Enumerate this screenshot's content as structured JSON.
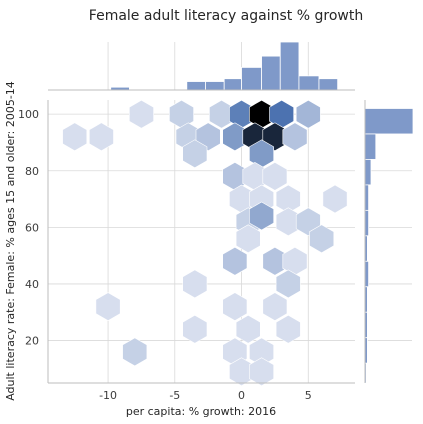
{
  "chart_data": {
    "type": "hexbin-joint",
    "title": "Female adult literacy against % growth",
    "xlabel": "per capita: % growth: 2016",
    "ylabel": "Adult literacy rate: Female: % ages 15 and older: 2005-14",
    "xlim": [
      -14.5,
      8.5
    ],
    "ylim": [
      5,
      105
    ],
    "xticks": [
      "-10",
      "-5",
      "0",
      "5"
    ],
    "yticks": [
      "20",
      "40",
      "60",
      "80",
      "100"
    ],
    "grid": true,
    "colormap": "Blues (light to dark)",
    "max_count": 12,
    "hexbins": [
      {
        "x": -7.5,
        "y": 100,
        "count": 1
      },
      {
        "x": -4.5,
        "y": 100,
        "count": 2
      },
      {
        "x": -1.5,
        "y": 100,
        "count": 2
      },
      {
        "x": 0.0,
        "y": 100,
        "count": 8
      },
      {
        "x": 1.5,
        "y": 100,
        "count": 12
      },
      {
        "x": 3.0,
        "y": 100,
        "count": 9
      },
      {
        "x": 5.0,
        "y": 100,
        "count": 4
      },
      {
        "x": -12.5,
        "y": 92,
        "count": 1
      },
      {
        "x": -10.5,
        "y": 92,
        "count": 1
      },
      {
        "x": -4.0,
        "y": 92,
        "count": 2
      },
      {
        "x": -2.5,
        "y": 92,
        "count": 3
      },
      {
        "x": -0.5,
        "y": 92,
        "count": 6
      },
      {
        "x": 1.0,
        "y": 92,
        "count": 11
      },
      {
        "x": 2.5,
        "y": 92,
        "count": 11
      },
      {
        "x": 4.0,
        "y": 92,
        "count": 3
      },
      {
        "x": -3.5,
        "y": 86,
        "count": 2
      },
      {
        "x": 1.5,
        "y": 86,
        "count": 6
      },
      {
        "x": -0.5,
        "y": 78,
        "count": 3
      },
      {
        "x": 1.0,
        "y": 78,
        "count": 1
      },
      {
        "x": 2.5,
        "y": 78,
        "count": 1
      },
      {
        "x": 0.0,
        "y": 70,
        "count": 1
      },
      {
        "x": 1.5,
        "y": 70,
        "count": 1
      },
      {
        "x": 3.5,
        "y": 70,
        "count": 1
      },
      {
        "x": 7.0,
        "y": 70,
        "count": 1
      },
      {
        "x": 0.5,
        "y": 62,
        "count": 2
      },
      {
        "x": 3.5,
        "y": 62,
        "count": 1
      },
      {
        "x": 5.0,
        "y": 62,
        "count": 2
      },
      {
        "x": 1.5,
        "y": 64,
        "count": 5
      },
      {
        "x": 0.5,
        "y": 56,
        "count": 1
      },
      {
        "x": 6.0,
        "y": 56,
        "count": 2
      },
      {
        "x": -0.5,
        "y": 48,
        "count": 3
      },
      {
        "x": 2.5,
        "y": 48,
        "count": 3
      },
      {
        "x": 4.0,
        "y": 48,
        "count": 1
      },
      {
        "x": -3.5,
        "y": 40,
        "count": 1
      },
      {
        "x": 3.5,
        "y": 40,
        "count": 2
      },
      {
        "x": -10.0,
        "y": 32,
        "count": 1
      },
      {
        "x": -0.5,
        "y": 32,
        "count": 1
      },
      {
        "x": 2.5,
        "y": 32,
        "count": 1
      },
      {
        "x": -3.5,
        "y": 24,
        "count": 1
      },
      {
        "x": 0.5,
        "y": 24,
        "count": 1
      },
      {
        "x": 3.5,
        "y": 24,
        "count": 1
      },
      {
        "x": -8.0,
        "y": 16,
        "count": 2
      },
      {
        "x": -0.5,
        "y": 16,
        "count": 1
      },
      {
        "x": 1.5,
        "y": 16,
        "count": 1
      },
      {
        "x": 0.0,
        "y": 9,
        "count": 1
      },
      {
        "x": 1.5,
        "y": 9,
        "count": 1
      }
    ],
    "top_histogram": {
      "bins": [
        {
          "x0": -9.8,
          "x1": -8.4,
          "count": 1
        },
        {
          "x0": -4.1,
          "x1": -2.7,
          "count": 3
        },
        {
          "x0": -2.7,
          "x1": -1.3,
          "count": 3
        },
        {
          "x0": -1.3,
          "x1": 0.0,
          "count": 4
        },
        {
          "x0": 0.0,
          "x1": 1.5,
          "count": 8
        },
        {
          "x0": 1.5,
          "x1": 2.9,
          "count": 12
        },
        {
          "x0": 2.9,
          "x1": 4.3,
          "count": 17
        },
        {
          "x0": 4.3,
          "x1": 5.8,
          "count": 5
        },
        {
          "x0": 5.8,
          "x1": 7.2,
          "count": 4
        }
      ],
      "max": 17
    },
    "right_histogram": {
      "bins": [
        {
          "y0": 93,
          "y1": 102,
          "count": 40
        },
        {
          "y0": 84,
          "y1": 93,
          "count": 9
        },
        {
          "y0": 75,
          "y1": 84,
          "count": 5
        },
        {
          "y0": 66,
          "y1": 75,
          "count": 3
        },
        {
          "y0": 57,
          "y1": 66,
          "count": 3
        },
        {
          "y0": 48,
          "y1": 57,
          "count": 2
        },
        {
          "y0": 39,
          "y1": 48,
          "count": 3
        },
        {
          "y0": 30,
          "y1": 39,
          "count": 2
        },
        {
          "y0": 21,
          "y1": 30,
          "count": 2
        },
        {
          "y0": 12,
          "y1": 21,
          "count": 2
        },
        {
          "y0": 5,
          "y1": 12,
          "count": 1
        }
      ],
      "max": 40
    }
  }
}
